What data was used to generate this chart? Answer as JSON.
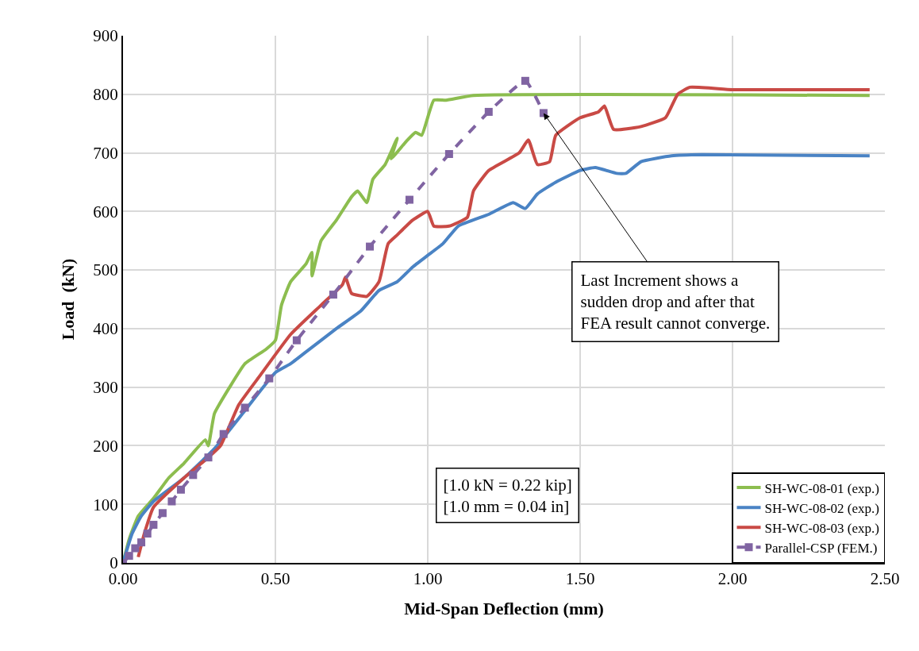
{
  "chart_data": {
    "type": "line",
    "xlabel": "Mid-Span Deflection (mm)",
    "ylabel": "Load  (kN)",
    "xlim": [
      0,
      2.5
    ],
    "xticks": [
      {
        "value": 0,
        "label": "0.00"
      },
      {
        "value": 0.5,
        "label": "0.50"
      },
      {
        "value": 1,
        "label": "1.00"
      },
      {
        "value": 1.5,
        "label": "1.50"
      },
      {
        "value": 2,
        "label": "2.00"
      },
      {
        "value": 2.5,
        "label": "2.50"
      }
    ],
    "ylim": [
      0,
      900
    ],
    "yticks": [
      0,
      100,
      200,
      300,
      400,
      500,
      600,
      700,
      800,
      900
    ],
    "grid": true,
    "legend": "bottom right",
    "series": [
      {
        "name": "SH-WC-08-01 (exp.)",
        "color": "#8cbd4f",
        "marker": "none",
        "line_style": "solid",
        "x": [
          0,
          0.02,
          0.05,
          0.1,
          0.15,
          0.2,
          0.27,
          0.28,
          0.3,
          0.35,
          0.4,
          0.47,
          0.5,
          0.52,
          0.55,
          0.6,
          0.62,
          0.62,
          0.65,
          0.7,
          0.75,
          0.77,
          0.8,
          0.82,
          0.86,
          0.9,
          0.88,
          0.93,
          0.96,
          0.98,
          1.02,
          1.06,
          1.15,
          2.45
        ],
        "values": [
          0,
          40,
          80,
          110,
          145,
          170,
          210,
          200,
          255,
          300,
          340,
          365,
          380,
          440,
          480,
          510,
          530,
          490,
          550,
          585,
          625,
          635,
          615,
          655,
          680,
          725,
          690,
          720,
          735,
          730,
          790,
          790,
          798,
          798
        ]
      },
      {
        "name": "SH-WC-08-02 (exp.)",
        "color": "#4a83c4",
        "marker": "none",
        "line_style": "solid",
        "x": [
          0,
          0.03,
          0.06,
          0.1,
          0.2,
          0.3,
          0.4,
          0.5,
          0.55,
          0.6,
          0.7,
          0.78,
          0.84,
          0.9,
          0.95,
          1.0,
          1.05,
          1.1,
          1.2,
          1.28,
          1.32,
          1.36,
          1.42,
          1.5,
          1.55,
          1.62,
          1.65,
          1.7,
          1.8,
          1.9,
          2.45
        ],
        "values": [
          0,
          50,
          80,
          105,
          145,
          195,
          260,
          325,
          340,
          360,
          400,
          430,
          465,
          480,
          505,
          525,
          545,
          575,
          595,
          615,
          605,
          630,
          650,
          670,
          675,
          665,
          665,
          685,
          695,
          697,
          695
        ]
      },
      {
        "name": "SH-WC-08-03 (exp.)",
        "color": "#c94a45",
        "marker": "none",
        "line_style": "solid",
        "x": [
          0.05,
          0.07,
          0.1,
          0.2,
          0.28,
          0.32,
          0.38,
          0.45,
          0.55,
          0.65,
          0.72,
          0.73,
          0.75,
          0.8,
          0.84,
          0.87,
          0.9,
          0.95,
          1.0,
          1.02,
          1.07,
          1.13,
          1.15,
          1.2,
          1.3,
          1.33,
          1.36,
          1.4,
          1.42,
          1.5,
          1.56,
          1.58,
          1.61,
          1.7,
          1.78,
          1.82,
          1.86,
          2.0,
          2.45
        ],
        "values": [
          10,
          50,
          95,
          145,
          180,
          200,
          270,
          320,
          390,
          440,
          475,
          488,
          460,
          455,
          480,
          545,
          560,
          585,
          600,
          575,
          575,
          590,
          635,
          670,
          700,
          722,
          680,
          685,
          730,
          760,
          770,
          780,
          740,
          745,
          760,
          800,
          812,
          808,
          808
        ]
      },
      {
        "name": "Parallel-CSP (FEM.)",
        "color": "#8064a2",
        "marker": "square",
        "line_style": "dashed",
        "x": [
          0,
          0.02,
          0.04,
          0.06,
          0.08,
          0.1,
          0.13,
          0.16,
          0.19,
          0.23,
          0.28,
          0.33,
          0.4,
          0.48,
          0.57,
          0.69,
          0.81,
          0.94,
          1.07,
          1.2,
          1.32,
          1.38
        ],
        "values": [
          0,
          12,
          25,
          35,
          50,
          65,
          85,
          105,
          125,
          150,
          180,
          220,
          265,
          315,
          380,
          458,
          540,
          620,
          698,
          770,
          823,
          768
        ]
      }
    ],
    "annotations": [
      {
        "text": "Last Increment shows a\nsudden drop and after that\nFEA result cannot converge.",
        "x": 1.38,
        "y": 768
      },
      "[1.0 kN = 0.22 kip]\n[1.0 mm = 0.04 in]"
    ]
  }
}
